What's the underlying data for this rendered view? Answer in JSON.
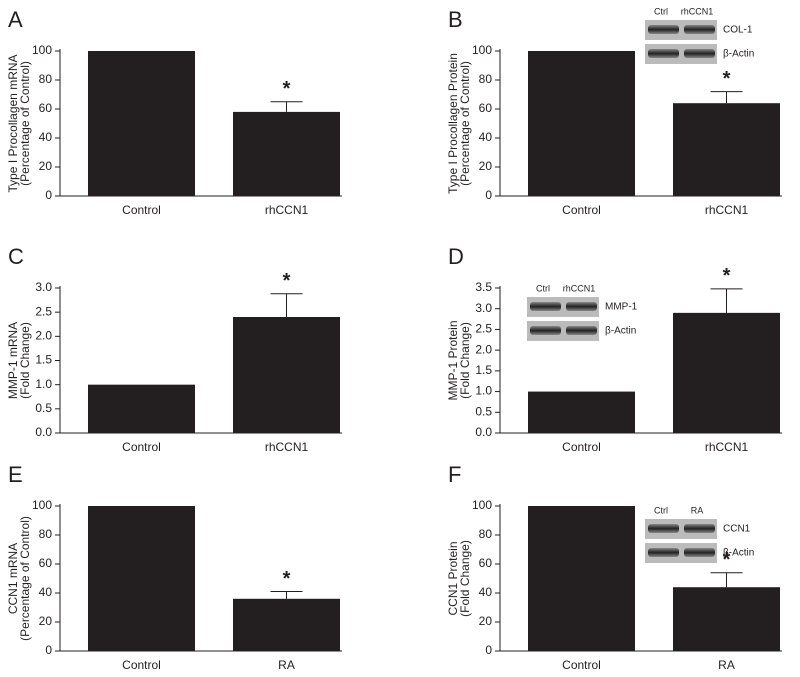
{
  "chart_data": [
    {
      "type": "bar",
      "panel": "A",
      "ylabel": [
        "Type I Procollagen mRNA",
        "(Percentage of Control)"
      ],
      "categories": [
        "Control",
        "rhCCN1"
      ],
      "values": [
        100,
        58
      ],
      "errors": [
        null,
        7
      ],
      "significance": [
        null,
        "*"
      ],
      "color": "#231f20",
      "ylim": [
        0,
        100
      ],
      "yticks": [
        0,
        20,
        40,
        60,
        80,
        100
      ]
    },
    {
      "type": "bar",
      "panel": "B",
      "ylabel": [
        "Type I Procollagen Protein",
        "(Percentage of Control)"
      ],
      "categories": [
        "Control",
        "rhCCN1"
      ],
      "values": [
        100,
        64
      ],
      "errors": [
        null,
        8
      ],
      "significance": [
        null,
        "*"
      ],
      "color": "#231f20",
      "ylim": [
        0,
        100
      ],
      "yticks": [
        0,
        20,
        40,
        60,
        80,
        100
      ],
      "inset": {
        "columns": [
          "Ctrl",
          "rhCCN1"
        ],
        "rows": [
          "COL-1",
          "β-Actin"
        ]
      }
    },
    {
      "type": "bar",
      "panel": "C",
      "ylabel": [
        "MMP-1 mRNA",
        "(Fold Change)"
      ],
      "categories": [
        "Control",
        "rhCCN1"
      ],
      "values": [
        1,
        2.4
      ],
      "errors": [
        null,
        0.48
      ],
      "significance": [
        null,
        "*"
      ],
      "color": "#231f20",
      "ylim": [
        0,
        3
      ],
      "yticks": [
        {
          "value": 0,
          "label": "0.0"
        },
        0.5,
        {
          "value": 1,
          "label": "1.0"
        },
        1.5,
        {
          "value": 2,
          "label": "2.0"
        },
        2.5,
        {
          "value": 3,
          "label": "3.0"
        }
      ]
    },
    {
      "type": "bar",
      "panel": "D",
      "ylabel": [
        "MMP-1 Protein",
        "(Fold Change)"
      ],
      "categories": [
        "Control",
        "rhCCN1"
      ],
      "values": [
        1,
        2.9
      ],
      "errors": [
        null,
        0.58
      ],
      "significance": [
        null,
        "*"
      ],
      "color": "#231f20",
      "ylim": [
        0,
        3.5
      ],
      "yticks": [
        {
          "value": 0,
          "label": "0.0"
        },
        0.5,
        {
          "value": 1,
          "label": "1.0"
        },
        1.5,
        {
          "value": 2,
          "label": "2.0"
        },
        2.5,
        {
          "value": 3,
          "label": "3.0"
        },
        3.5
      ],
      "inset": {
        "columns": [
          "Ctrl",
          "rhCCN1"
        ],
        "rows": [
          "MMP-1",
          "β-Actin"
        ]
      }
    },
    {
      "type": "bar",
      "panel": "E",
      "ylabel": [
        "CCN1 mRNA",
        "(Percentage of Control)"
      ],
      "categories": [
        "Control",
        "RA"
      ],
      "values": [
        100,
        36
      ],
      "errors": [
        null,
        5
      ],
      "significance": [
        null,
        "*"
      ],
      "color": "#231f20",
      "ylim": [
        0,
        100
      ],
      "yticks": [
        0,
        20,
        40,
        60,
        80,
        100
      ]
    },
    {
      "type": "bar",
      "panel": "F",
      "ylabel": [
        "CCN1 Protein",
        "(Fold Change)"
      ],
      "categories": [
        "Control",
        "RA"
      ],
      "values": [
        100,
        44
      ],
      "errors": [
        null,
        10
      ],
      "significance": [
        null,
        "*"
      ],
      "color": "#231f20",
      "ylim": [
        0,
        100
      ],
      "yticks": [
        0,
        20,
        40,
        60,
        80,
        100
      ],
      "inset": {
        "columns": [
          "Ctrl",
          "RA"
        ],
        "rows": [
          "CCN1",
          "β-Actin"
        ]
      }
    }
  ]
}
